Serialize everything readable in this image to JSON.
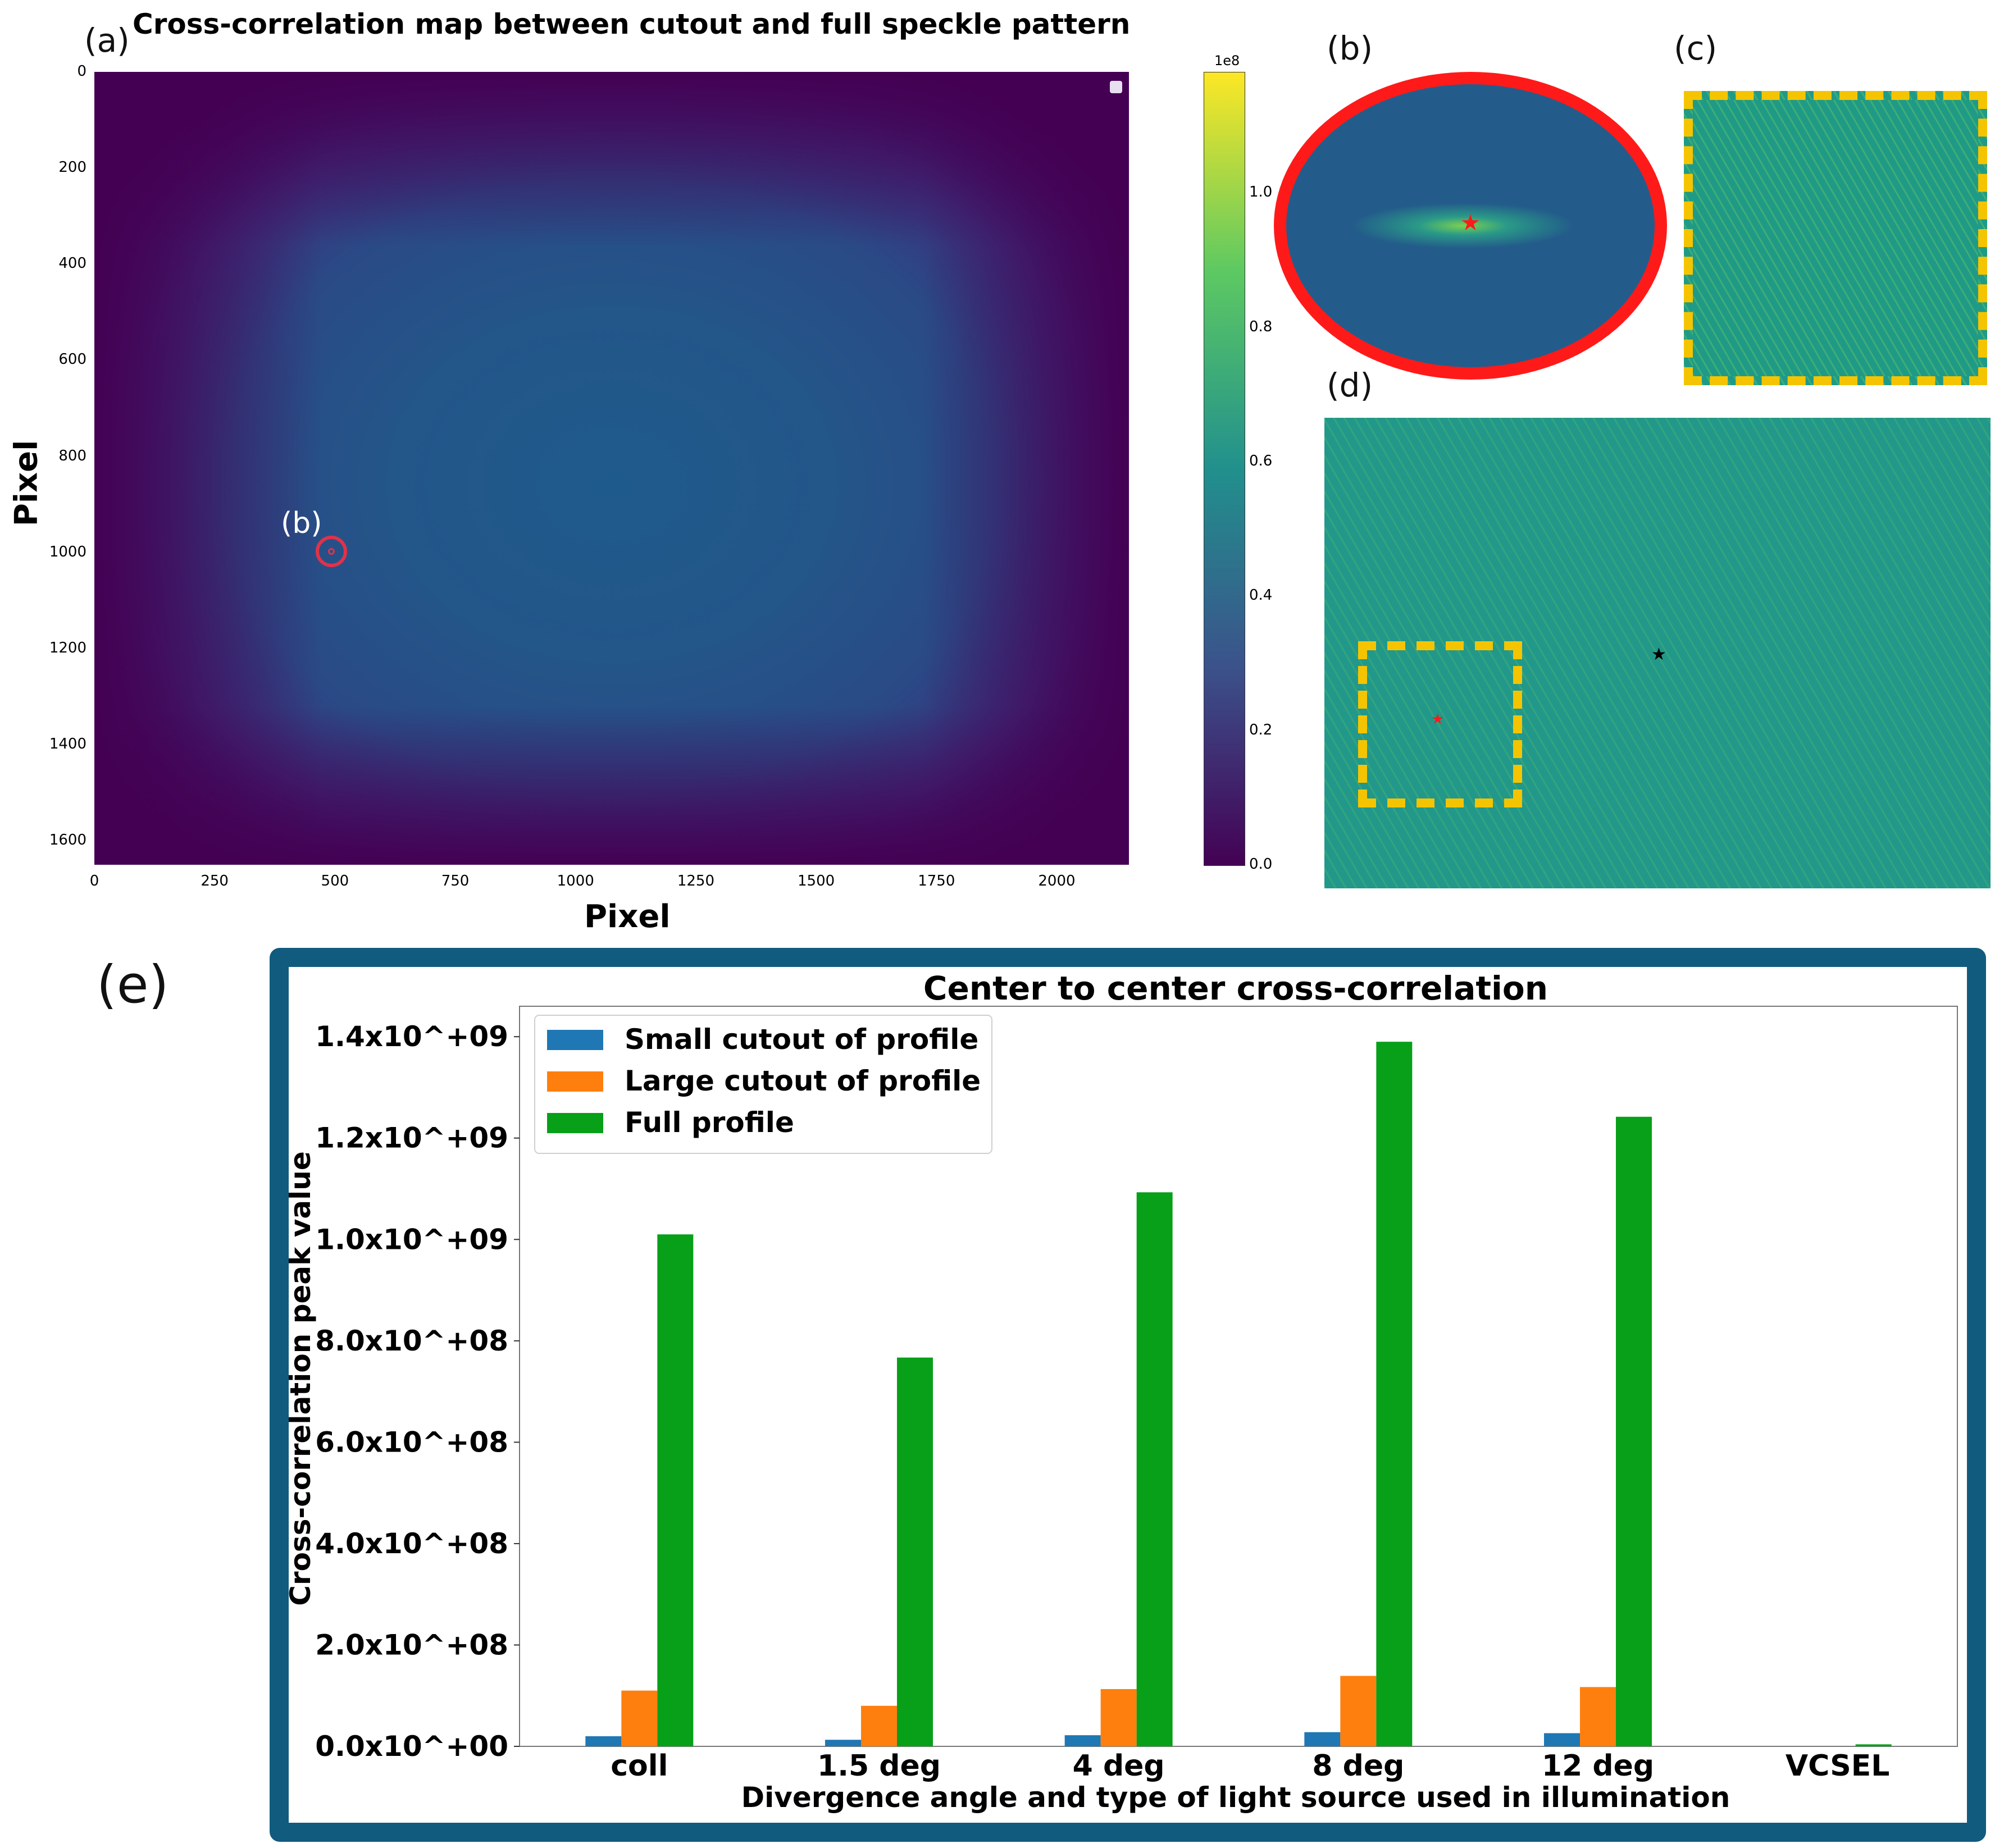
{
  "panel_a": {
    "label": "(a)",
    "title": "Cross-correlation map between cutout and full speckle pattern",
    "xlabel": "Pixel",
    "ylabel": "Pixel",
    "x_ticks": [
      "0",
      "250",
      "500",
      "750",
      "1000",
      "1250",
      "1500",
      "1750",
      "2000"
    ],
    "y_ticks": [
      "0",
      "200",
      "400",
      "600",
      "800",
      "1000",
      "1200",
      "1400",
      "1600"
    ],
    "marker_label": "(b)",
    "colorbar": {
      "offset_label": "1e8",
      "ticks": [
        "0.0",
        "0.2",
        "0.4",
        "0.6",
        "0.8",
        "1.0"
      ]
    }
  },
  "panel_b": {
    "label": "(b)"
  },
  "panel_c": {
    "label": "(c)"
  },
  "panel_d": {
    "label": "(d)"
  },
  "panel_e": {
    "label": "(e)"
  },
  "colors": {
    "small": "#1f77b4",
    "large": "#ff7f0e",
    "full": "#07a018",
    "frame": "#115b7e",
    "highlight_red": "#ff1a1a",
    "highlight_yellow": "#f5c400"
  },
  "chart_data": {
    "type": "bar",
    "title": "Center to center cross-correlation",
    "xlabel": "Divergence angle and type of light source used in illumination",
    "ylabel": "Cross-correlation peak value",
    "categories": [
      "coll",
      "1.5 deg",
      "4 deg",
      "8 deg",
      "12 deg",
      "VCSEL"
    ],
    "series": [
      {
        "name": "Small cutout of profile",
        "values": [
          20000000,
          13000000,
          22000000,
          28000000,
          26000000,
          0
        ]
      },
      {
        "name": "Large cutout of profile",
        "values": [
          110000000,
          80000000,
          113000000,
          139000000,
          117000000,
          0
        ]
      },
      {
        "name": "Full profile",
        "values": [
          1010000000,
          767000000,
          1093000000,
          1390000000,
          1242000000,
          4000000
        ]
      }
    ],
    "ylim": [
      0,
      1460000000
    ],
    "y_ticks": [
      {
        "value": 0,
        "label": "0.0x10^+00"
      },
      {
        "value": 200000000,
        "label": "2.0x10^+08"
      },
      {
        "value": 400000000,
        "label": "4.0x10^+08"
      },
      {
        "value": 600000000,
        "label": "6.0x10^+08"
      },
      {
        "value": 800000000,
        "label": "8.0x10^+08"
      },
      {
        "value": 1000000000,
        "label": "1.0x10^+09"
      },
      {
        "value": 1200000000,
        "label": "1.2x10^+09"
      },
      {
        "value": 1400000000,
        "label": "1.4x10^+09"
      }
    ],
    "legend_position": "top-left"
  }
}
